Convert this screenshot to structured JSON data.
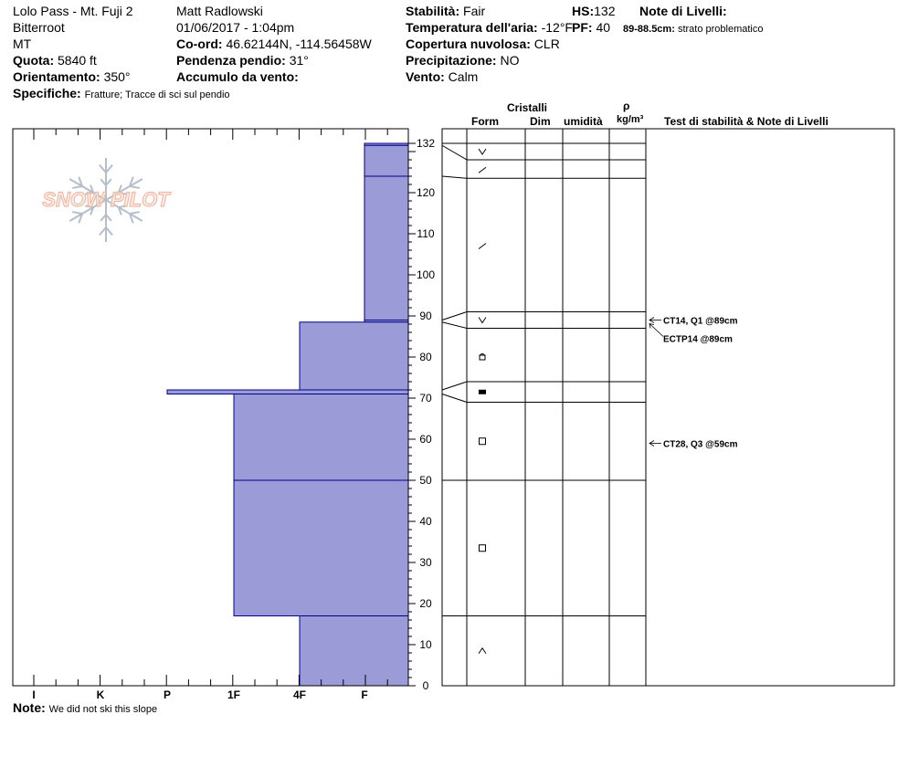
{
  "header": {
    "site": "Lolo Pass - Mt. Fuji 2",
    "range": "Bitterroot",
    "state": "MT",
    "elevation_label": "Quota:",
    "elevation_value": "5840 ft",
    "aspect_label": "Orientamento:",
    "aspect_value": "350°",
    "specifics_label": "Specifiche:",
    "specifics_value": "Fratture;  Tracce di sci sul pendio",
    "observer": "Matt Radlowski",
    "datetime": "01/06/2017 - 1:04pm",
    "coord_label": "Co-ord:",
    "coord_value": "46.62144N, -114.56458W",
    "slope_label": "Pendenza pendio:",
    "slope_value": "31°",
    "wind_loading_label": "Accumulo da vento:",
    "wind_loading_value": "",
    "stability_label": "Stabilità:",
    "stability_value": "Fair",
    "air_temp_label": "Temperatura dell'aria:",
    "air_temp_value": "-12°F",
    "cloud_label": "Copertura nuvolosa:",
    "cloud_value": "CLR",
    "precip_label": "Precipitazione:",
    "precip_value": "NO",
    "wind_label": "Vento:",
    "wind_value": "Calm",
    "hs_label": "HS:",
    "hs_value": "132",
    "pf_label": "PF:",
    "pf_value": "40",
    "layer_notes_label": "Note di Livelli:",
    "layer_note": "89-88.5cm:",
    "layer_note_text": "strato problematico"
  },
  "columns": {
    "crystals": "Cristalli",
    "form": "Form",
    "size": "Dim",
    "moisture": "umidità",
    "rho": "ρ",
    "density_unit": "kg/m³",
    "tests": "Test di stabilità & Note di Livelli"
  },
  "footer": {
    "note_label": "Note:",
    "note_value": "We did not ski this slope"
  },
  "logo": {
    "text": "SNOW PILOT"
  },
  "colors": {
    "hardness_fill": "#9b9bd8",
    "hardness_stroke": "#00008b",
    "logo": "#f1b9a4",
    "flake": "#b4bfca"
  },
  "chart_data": {
    "type": "bar",
    "orientation": "horizontal",
    "y_range": [
      0,
      132
    ],
    "y_ticks": [
      0,
      10,
      20,
      30,
      40,
      50,
      60,
      70,
      80,
      90,
      100,
      110,
      120,
      132
    ],
    "hardness_scale": [
      "I",
      "K",
      "P",
      "1F",
      "4F",
      "F"
    ],
    "hardness_layers": [
      {
        "top": 132,
        "bottom": 131.5,
        "hardness": "F"
      },
      {
        "top": 131.5,
        "bottom": 124,
        "hardness": "F"
      },
      {
        "top": 124,
        "bottom": 89,
        "hardness": "F"
      },
      {
        "top": 89,
        "bottom": 88.5,
        "hardness": "F"
      },
      {
        "top": 88.5,
        "bottom": 72,
        "hardness": "4F"
      },
      {
        "top": 72,
        "bottom": 71,
        "hardness": "P"
      },
      {
        "top": 71,
        "bottom": 50,
        "hardness": "1F"
      },
      {
        "top": 50,
        "bottom": 17,
        "hardness": "1F"
      },
      {
        "top": 17,
        "bottom": 0,
        "hardness": "4F"
      }
    ],
    "grain_boundaries": [
      132,
      128,
      123.5,
      91,
      87,
      74,
      69,
      50,
      17,
      0
    ],
    "grain_forms": [
      {
        "depth": 130,
        "form": "surface-hoar"
      },
      {
        "depth": 125.5,
        "form": "decomposing"
      },
      {
        "depth": 107,
        "form": "decomposing"
      },
      {
        "depth": 89,
        "form": "surface-hoar"
      },
      {
        "depth": 80,
        "form": "rounding-facets"
      },
      {
        "depth": 71.5,
        "form": "crust"
      },
      {
        "depth": 59.5,
        "form": "facets"
      },
      {
        "depth": 33.5,
        "form": "facets"
      },
      {
        "depth": 8.5,
        "form": "depth-hoar"
      }
    ],
    "tests": [
      {
        "depth": 89,
        "label": "CT14, Q1 @89cm"
      },
      {
        "depth": 89,
        "label": "ECTP14 @89cm"
      },
      {
        "depth": 59,
        "label": "CT28, Q3 @59cm"
      }
    ]
  }
}
